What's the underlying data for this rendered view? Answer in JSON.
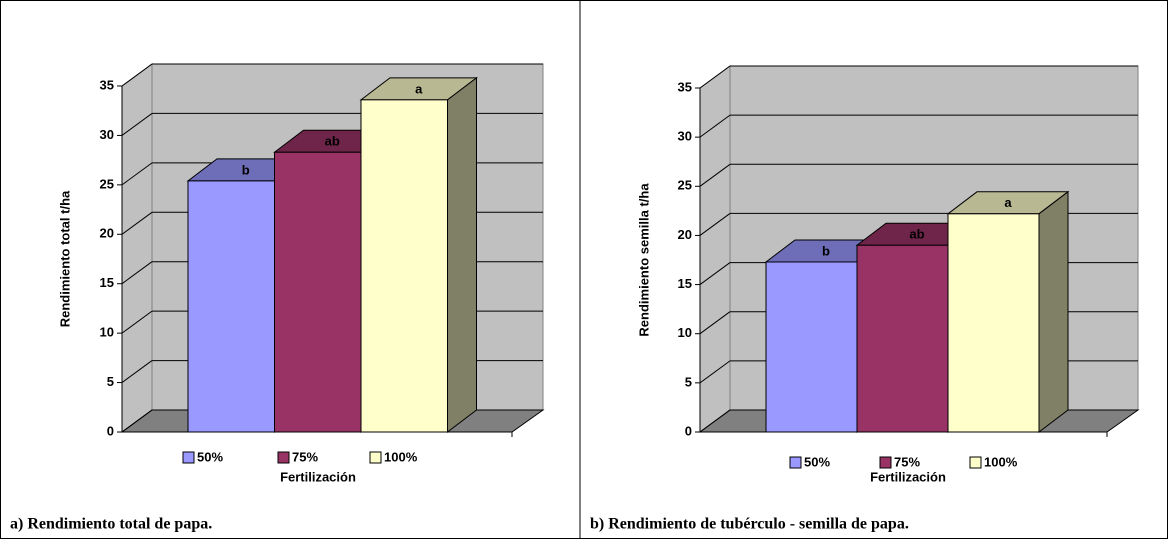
{
  "chart_data": [
    {
      "type": "bar3d",
      "y_label": "Rendimiento total t/ha",
      "x_label": "Fertilización",
      "caption": "a) Rendimiento total de papa.",
      "ylim": [
        0,
        35
      ],
      "yticks": [
        0,
        5,
        10,
        15,
        20,
        25,
        30,
        35
      ],
      "grid": true,
      "series": [
        {
          "name": "50%",
          "color": "#9999ff",
          "values": [
            25.4
          ]
        },
        {
          "name": "75%",
          "color": "#993366",
          "values": [
            28.3
          ]
        },
        {
          "name": "100%",
          "color": "#ffffcc",
          "values": [
            33.6
          ]
        }
      ],
      "annotations": [
        "b",
        "ab",
        "a"
      ]
    },
    {
      "type": "bar3d",
      "y_label": "Rendimiento semilla t/ha",
      "x_label": "Fertilización",
      "caption": "b) Rendimiento de tubérculo - semilla  de papa.",
      "ylim": [
        0,
        35
      ],
      "yticks": [
        0,
        5,
        10,
        15,
        20,
        25,
        30,
        35
      ],
      "grid": true,
      "series": [
        {
          "name": "50%",
          "color": "#9999ff",
          "values": [
            17.3
          ]
        },
        {
          "name": "75%",
          "color": "#993366",
          "values": [
            19.0
          ]
        },
        {
          "name": "100%",
          "color": "#ffffcc",
          "values": [
            22.2
          ]
        }
      ],
      "annotations": [
        "b",
        "ab",
        "a"
      ]
    }
  ]
}
